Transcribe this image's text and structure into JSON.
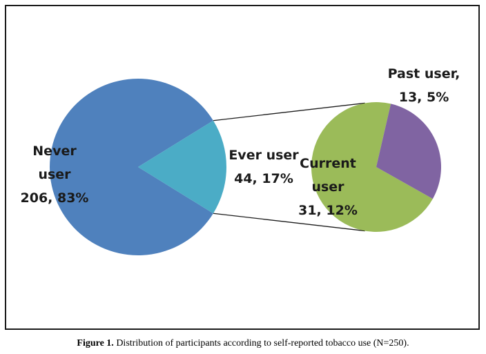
{
  "caption": {
    "label": "Figure 1.",
    "text": "Distribution of participants according to self-reported tobacco use (N=250)."
  },
  "colors": {
    "never": "#4f81bd",
    "ever": "#4bacc6",
    "current": "#9bbb59",
    "past": "#8064a2",
    "connector": "#1a1a1a"
  },
  "chart_data": {
    "type": "pie",
    "subtype": "pie-of-pie",
    "title": "",
    "main": {
      "slices": [
        {
          "name": "Never user",
          "value": 206,
          "percent": 83,
          "label_lines": [
            "Never",
            "user",
            "206, 83%"
          ]
        },
        {
          "name": "Ever user",
          "value": 44,
          "percent": 17,
          "label_lines": [
            "Ever user",
            "44, 17%"
          ]
        }
      ]
    },
    "secondary": {
      "breakout_of": "Ever user",
      "slices": [
        {
          "name": "Current user",
          "value": 31,
          "percent": 12,
          "label_lines": [
            "Current",
            "user",
            "31, 12%"
          ]
        },
        {
          "name": "Past user",
          "value": 13,
          "percent": 5,
          "label_lines": [
            "Past user,",
            "13, 5%"
          ]
        }
      ]
    },
    "legend": "none"
  }
}
